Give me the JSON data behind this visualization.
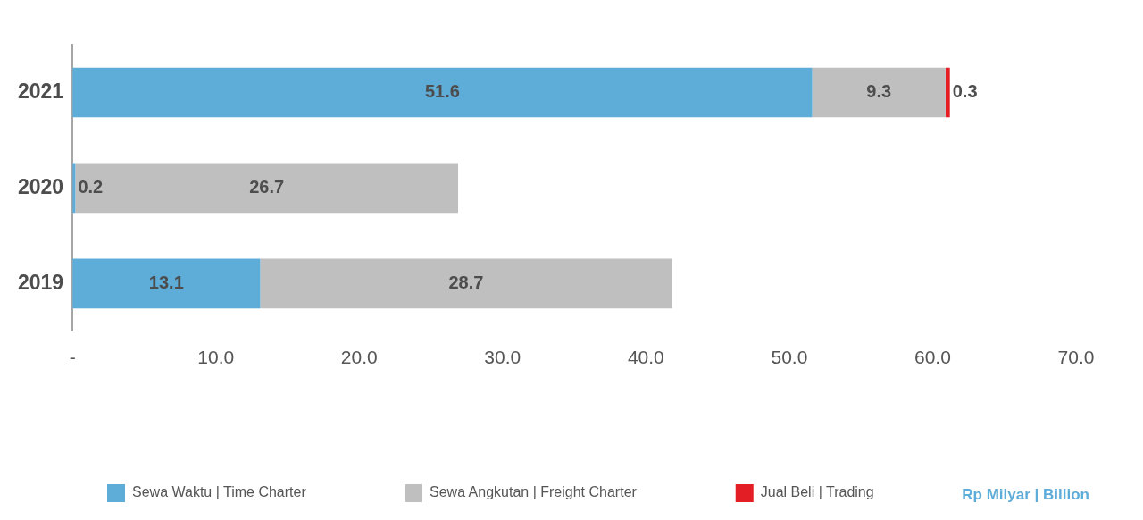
{
  "chart_data": {
    "type": "bar",
    "orientation": "horizontal",
    "stacked": true,
    "categories": [
      "2021",
      "2020",
      "2019"
    ],
    "series": [
      {
        "name": "Sewa Waktu | Time Charter",
        "color": "#5eacd8",
        "values": [
          51.6,
          0.2,
          13.1
        ]
      },
      {
        "name": "Sewa Angkutan | Freight Charter",
        "color": "#bfbfbf",
        "values": [
          9.3,
          26.7,
          28.7
        ]
      },
      {
        "name": "Jual Beli | Trading",
        "color": "#e31e24",
        "values": [
          0.3,
          null,
          null
        ]
      }
    ],
    "xlim": [
      0,
      70
    ],
    "xticks": [
      {
        "value": 0,
        "label": "-"
      },
      {
        "value": 10,
        "label": "10.0"
      },
      {
        "value": 20,
        "label": "20.0"
      },
      {
        "value": 30,
        "label": "30.0"
      },
      {
        "value": 40,
        "label": "40.0"
      },
      {
        "value": 50,
        "label": "50.0"
      },
      {
        "value": 60,
        "label": "60.0"
      },
      {
        "value": 70,
        "label": "70.0"
      }
    ],
    "annotations": [
      "Rp Milyar | Billion"
    ],
    "grid": false,
    "legend": "bottom",
    "data_labels": true
  }
}
